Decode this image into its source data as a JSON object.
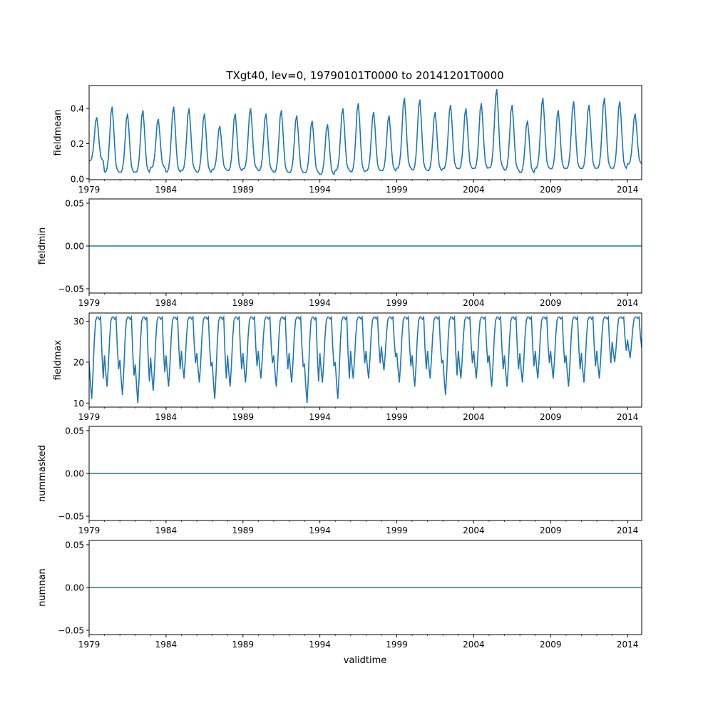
{
  "figure": {
    "title": "TXgt40, lev=0, 19790101T0000 to 20141201T0000",
    "xlabel": "validtime",
    "line_color": "#1f77b4"
  },
  "chart_data": [
    {
      "type": "line",
      "name": "fieldmean",
      "ylabel": "fieldmean",
      "xlim": [
        1979.0,
        2014.92
      ],
      "ylim": [
        -0.005,
        0.53
      ],
      "yticks": [
        "0.0",
        "0.2",
        "0.4"
      ],
      "ytick_values": [
        0.0,
        0.2,
        0.4
      ],
      "xticks": [
        "1979",
        "1984",
        "1989",
        "1994",
        "1999",
        "2004",
        "2009",
        "2014"
      ],
      "start": "1979-01",
      "end": "2014-12",
      "frequency": "monthly",
      "annual_peaks": [
        0.35,
        0.41,
        0.37,
        0.39,
        0.34,
        0.41,
        0.4,
        0.37,
        0.3,
        0.37,
        0.4,
        0.37,
        0.39,
        0.36,
        0.33,
        0.31,
        0.4,
        0.43,
        0.38,
        0.36,
        0.46,
        0.45,
        0.38,
        0.42,
        0.4,
        0.43,
        0.51,
        0.42,
        0.33,
        0.46,
        0.39,
        0.44,
        0.42,
        0.46,
        0.44,
        0.37
      ],
      "annual_troughs": [
        0.09,
        0.02,
        0.02,
        0.02,
        0.05,
        0.02,
        0.03,
        0.02,
        0.04,
        0.03,
        0.04,
        0.03,
        0.02,
        0.02,
        0.02,
        0.01,
        0.03,
        0.02,
        0.03,
        0.03,
        0.04,
        0.03,
        0.03,
        0.04,
        0.04,
        0.04,
        0.04,
        0.03,
        0.02,
        0.04,
        0.04,
        0.04,
        0.04,
        0.04,
        0.04,
        0.07
      ]
    },
    {
      "type": "line",
      "name": "fieldmin",
      "ylabel": "fieldmin",
      "xlim": [
        1979.0,
        2014.92
      ],
      "ylim": [
        -0.055,
        0.055
      ],
      "yticks": [
        "−0.05",
        "0.00",
        "0.05"
      ],
      "ytick_values": [
        -0.05,
        0.0,
        0.05
      ],
      "xticks": [
        "1979",
        "1984",
        "1989",
        "1994",
        "1999",
        "2004",
        "2009",
        "2014"
      ],
      "constant": 0.0
    },
    {
      "type": "line",
      "name": "fieldmax",
      "ylabel": "fieldmax",
      "xlim": [
        1979.0,
        2014.92
      ],
      "ylim": [
        9.0,
        32.0
      ],
      "yticks": [
        "10",
        "20",
        "30"
      ],
      "ytick_values": [
        10,
        20,
        30
      ],
      "xticks": [
        "1979",
        "1984",
        "1989",
        "1994",
        "1999",
        "2004",
        "2009",
        "2014"
      ],
      "start": "1979-01",
      "end": "2014-12",
      "frequency": "monthly",
      "annual_peaks": [
        31,
        31,
        31,
        31,
        31,
        31,
        31,
        31,
        31,
        31,
        31,
        31,
        31,
        31,
        31,
        31,
        31,
        31,
        31,
        31,
        31,
        31,
        31,
        31,
        31,
        31,
        31,
        31,
        31,
        31,
        31,
        31,
        31,
        31,
        31,
        31
      ],
      "annual_troughs": [
        11,
        14,
        12,
        10,
        13,
        14,
        16,
        15,
        11,
        14,
        15,
        16,
        14,
        15,
        10,
        15,
        11,
        16,
        16,
        18,
        15,
        14,
        16,
        12,
        16,
        16,
        14,
        14,
        15,
        16,
        16,
        14,
        15,
        16,
        20,
        21
      ]
    },
    {
      "type": "line",
      "name": "nummasked",
      "ylabel": "nummasked",
      "xlim": [
        1979.0,
        2014.92
      ],
      "ylim": [
        -0.055,
        0.055
      ],
      "yticks": [
        "−0.05",
        "0.00",
        "0.05"
      ],
      "ytick_values": [
        -0.05,
        0.0,
        0.05
      ],
      "xticks": [
        "1979",
        "1984",
        "1989",
        "1994",
        "1999",
        "2004",
        "2009",
        "2014"
      ],
      "constant": 0.0
    },
    {
      "type": "line",
      "name": "numnan",
      "ylabel": "numnan",
      "xlim": [
        1979.0,
        2014.92
      ],
      "ylim": [
        -0.055,
        0.055
      ],
      "yticks": [
        "−0.05",
        "0.00",
        "0.05"
      ],
      "ytick_values": [
        -0.05,
        0.0,
        0.05
      ],
      "xticks": [
        "1979",
        "1984",
        "1989",
        "1994",
        "1999",
        "2004",
        "2009",
        "2014"
      ],
      "constant": 0.0
    }
  ]
}
